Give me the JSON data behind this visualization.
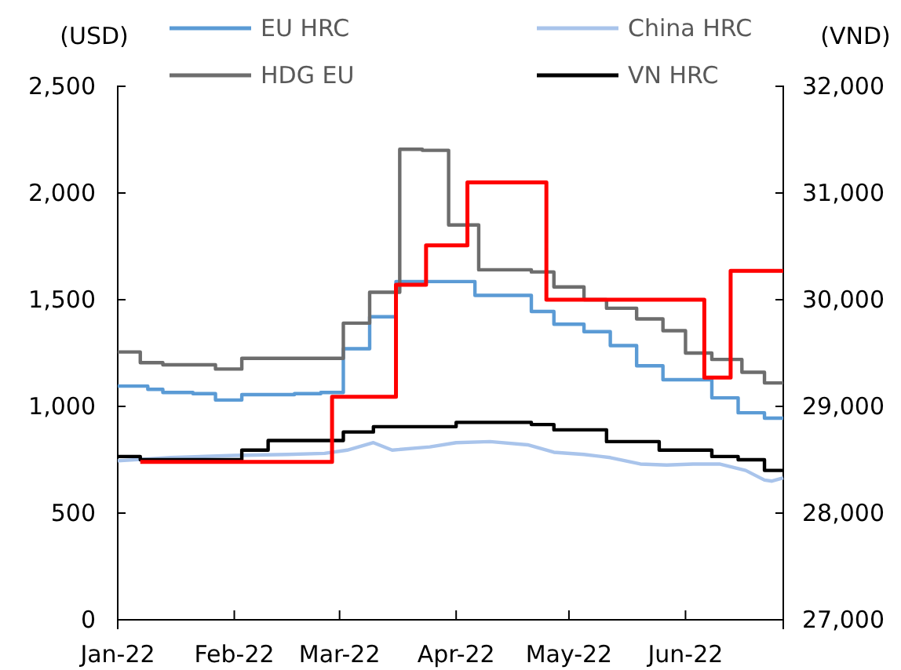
{
  "chart_data": {
    "type": "step",
    "ylabel": "(USD)",
    "y2label": "(VND)",
    "xlim": [
      "2022-01-01",
      "2022-06-27"
    ],
    "xticks": [
      {
        "value": "2022-01-01",
        "label": "Jan-22"
      },
      {
        "value": "2022-02-01",
        "label": "Feb-22"
      },
      {
        "value": "2022-03-01",
        "label": "Mar-22"
      },
      {
        "value": "2022-04-01",
        "label": "Apr-22"
      },
      {
        "value": "2022-05-01",
        "label": "May-22"
      },
      {
        "value": "2022-06-01",
        "label": "Jun-22"
      }
    ],
    "ylim": [
      0,
      2500
    ],
    "yticks": [
      {
        "value": 0,
        "label": "0"
      },
      {
        "value": 500,
        "label": "500"
      },
      {
        "value": 1000,
        "label": "1,000"
      },
      {
        "value": 1500,
        "label": "1,500"
      },
      {
        "value": 2000,
        "label": "2,000"
      },
      {
        "value": 2500,
        "label": "2,500"
      }
    ],
    "y2lim": [
      27000,
      32000
    ],
    "y2ticks": [
      {
        "value": 27000,
        "label": "27,000"
      },
      {
        "value": 28000,
        "label": "28,000"
      },
      {
        "value": 29000,
        "label": "29,000"
      },
      {
        "value": 30000,
        "label": "30,000"
      },
      {
        "value": 31000,
        "label": "31,000"
      },
      {
        "value": 32000,
        "label": "32,000"
      }
    ],
    "legend": "top",
    "grid": false,
    "series": [
      {
        "name": "EU HRC",
        "color": "#5b9bd5",
        "x": [
          "2022-01-01",
          "2022-01-09",
          "2022-01-13",
          "2022-01-21",
          "2022-01-27",
          "2022-02-03",
          "2022-02-17",
          "2022-02-24",
          "2022-03-02",
          "2022-03-09",
          "2022-03-16",
          "2022-04-06",
          "2022-04-21",
          "2022-04-27",
          "2022-05-05",
          "2022-05-12",
          "2022-05-19",
          "2022-05-26",
          "2022-06-08",
          "2022-06-15",
          "2022-06-22",
          "2022-06-27"
        ],
        "values": [
          1095,
          1080,
          1065,
          1060,
          1030,
          1055,
          1060,
          1065,
          1270,
          1420,
          1585,
          1520,
          1445,
          1385,
          1350,
          1285,
          1190,
          1125,
          1040,
          970,
          945,
          945
        ]
      },
      {
        "name": "China HRC",
        "type": "line",
        "color": "#a9c4eb",
        "x": [
          "2022-01-01",
          "2022-01-15",
          "2022-02-01",
          "2022-02-15",
          "2022-02-25",
          "2022-03-03",
          "2022-03-10",
          "2022-03-15",
          "2022-03-25",
          "2022-04-01",
          "2022-04-10",
          "2022-04-20",
          "2022-04-27",
          "2022-05-05",
          "2022-05-12",
          "2022-05-20",
          "2022-05-27",
          "2022-06-03",
          "2022-06-10",
          "2022-06-17",
          "2022-06-22",
          "2022-06-24",
          "2022-06-27"
        ],
        "values": [
          745,
          760,
          770,
          775,
          780,
          795,
          830,
          795,
          810,
          830,
          835,
          820,
          785,
          775,
          760,
          730,
          725,
          730,
          730,
          700,
          655,
          650,
          665
        ]
      },
      {
        "name": "HDG EU",
        "color": "#6d6d6d",
        "x": [
          "2022-01-01",
          "2022-01-07",
          "2022-01-13",
          "2022-01-27",
          "2022-02-03",
          "2022-03-02",
          "2022-03-09",
          "2022-03-17",
          "2022-03-23",
          "2022-03-30",
          "2022-04-07",
          "2022-04-21",
          "2022-04-27",
          "2022-05-05",
          "2022-05-11",
          "2022-05-19",
          "2022-05-26",
          "2022-06-01",
          "2022-06-08",
          "2022-06-16",
          "2022-06-22",
          "2022-06-27"
        ],
        "values": [
          1255,
          1205,
          1195,
          1175,
          1225,
          1390,
          1535,
          2205,
          2200,
          1850,
          1640,
          1630,
          1560,
          1500,
          1460,
          1410,
          1355,
          1250,
          1220,
          1160,
          1110,
          1110
        ]
      },
      {
        "name": "VN HRC",
        "color": "#000000",
        "x": [
          "2022-01-01",
          "2022-01-07",
          "2022-02-03",
          "2022-02-10",
          "2022-03-02",
          "2022-03-10",
          "2022-04-01",
          "2022-04-21",
          "2022-04-27",
          "2022-05-11",
          "2022-05-25",
          "2022-06-08",
          "2022-06-15",
          "2022-06-22",
          "2022-06-27"
        ],
        "values": [
          765,
          750,
          795,
          840,
          880,
          905,
          925,
          915,
          890,
          835,
          795,
          765,
          750,
          700,
          700
        ]
      },
      {
        "color": "#ff0000",
        "axis": "y2",
        "x": [
          "2022-01-07",
          "2022-02-27",
          "2022-03-16",
          "2022-03-24",
          "2022-04-04",
          "2022-04-25",
          "2022-06-06",
          "2022-06-13",
          "2022-06-27"
        ],
        "values": [
          28480,
          29090,
          30140,
          30510,
          31100,
          30000,
          29270,
          30270,
          30270
        ]
      }
    ]
  }
}
